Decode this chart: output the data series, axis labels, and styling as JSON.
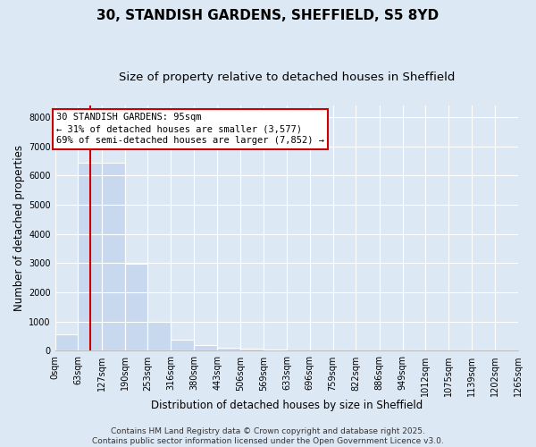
{
  "title": "30, STANDISH GARDENS, SHEFFIELD, S5 8YD",
  "subtitle": "Size of property relative to detached houses in Sheffield",
  "xlabel": "Distribution of detached houses by size in Sheffield",
  "ylabel": "Number of detached properties",
  "bar_values": [
    560,
    6450,
    6450,
    2980,
    980,
    380,
    185,
    110,
    65,
    35,
    25,
    10,
    8,
    5,
    3,
    2,
    1,
    1,
    0,
    0
  ],
  "bar_color": "#c8d8ee",
  "bin_edges": [
    0,
    63,
    127,
    190,
    253,
    316,
    380,
    443,
    506,
    569,
    633,
    696,
    759,
    822,
    886,
    949,
    1012,
    1075,
    1139,
    1202,
    1265
  ],
  "x_tick_labels": [
    "0sqm",
    "63sqm",
    "127sqm",
    "190sqm",
    "253sqm",
    "316sqm",
    "380sqm",
    "443sqm",
    "506sqm",
    "569sqm",
    "633sqm",
    "696sqm",
    "759sqm",
    "822sqm",
    "886sqm",
    "949sqm",
    "1012sqm",
    "1075sqm",
    "1139sqm",
    "1202sqm",
    "1265sqm"
  ],
  "ylim": [
    0,
    8400
  ],
  "yticks": [
    0,
    1000,
    2000,
    3000,
    4000,
    5000,
    6000,
    7000,
    8000
  ],
  "property_size": 95,
  "vline_color": "#cc0000",
  "annotation_line1": "30 STANDISH GARDENS: 95sqm",
  "annotation_line2": "← 31% of detached houses are smaller (3,577)",
  "annotation_line3": "69% of semi-detached houses are larger (7,852) →",
  "footer_text": "Contains HM Land Registry data © Crown copyright and database right 2025.\nContains public sector information licensed under the Open Government Licence v3.0.",
  "background_color": "#dde8f5",
  "grid_color": "#ffffff",
  "title_fontsize": 11,
  "subtitle_fontsize": 9.5,
  "axis_label_fontsize": 8.5,
  "tick_fontsize": 7,
  "annotation_fontsize": 7.5,
  "footer_fontsize": 6.5
}
